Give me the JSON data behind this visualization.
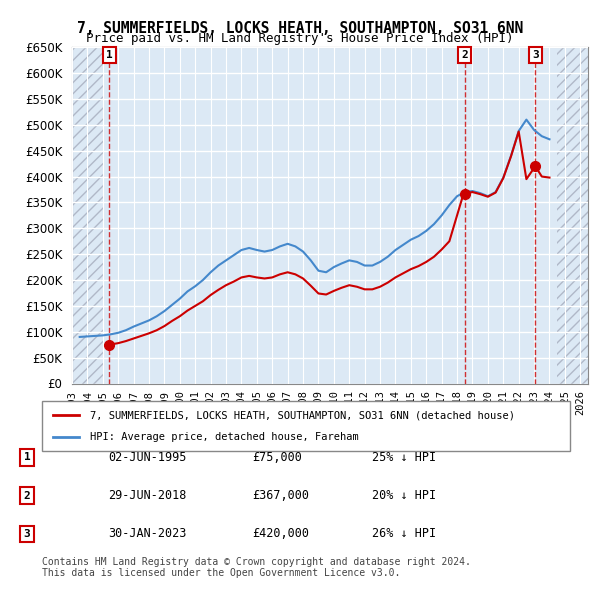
{
  "title": "7, SUMMERFIELDS, LOCKS HEATH, SOUTHAMPTON, SO31 6NN",
  "subtitle": "Price paid vs. HM Land Registry's House Price Index (HPI)",
  "legend_entry1": "7, SUMMERFIELDS, LOCKS HEATH, SOUTHAMPTON, SO31 6NN (detached house)",
  "legend_entry2": "HPI: Average price, detached house, Fareham",
  "sales": [
    {
      "num": 1,
      "date": "02-JUN-1995",
      "date_x": 1995.42,
      "price": 75000
    },
    {
      "num": 2,
      "date": "29-JUN-2018",
      "date_x": 2018.49,
      "price": 367000
    },
    {
      "num": 3,
      "date": "30-JAN-2023",
      "date_x": 2023.08,
      "price": 420000
    }
  ],
  "table_rows": [
    {
      "num": 1,
      "date": "02-JUN-1995",
      "price": "£75,000",
      "pct": "25% ↓ HPI"
    },
    {
      "num": 2,
      "date": "29-JUN-2018",
      "price": "£367,000",
      "pct": "20% ↓ HPI"
    },
    {
      "num": 3,
      "date": "30-JAN-2023",
      "price": "£420,000",
      "pct": "26% ↓ HPI"
    }
  ],
  "footer": "Contains HM Land Registry data © Crown copyright and database right 2024.\nThis data is licensed under the Open Government Licence v3.0.",
  "ylim": [
    0,
    650000
  ],
  "yticks": [
    0,
    50000,
    100000,
    150000,
    200000,
    250000,
    300000,
    350000,
    400000,
    450000,
    500000,
    550000,
    600000,
    650000
  ],
  "xlim_start": 1993,
  "xlim_end": 2026.5,
  "data_start": 1995.0,
  "data_end": 2024.5,
  "chart_bg": "#dce9f5",
  "hatch_color": "#b0b8c8",
  "grid_color": "#ffffff",
  "red_line_color": "#cc0000",
  "blue_line_color": "#4488cc",
  "sale_dot_color": "#cc0000",
  "hpi_x": [
    1993.5,
    1994.0,
    1994.5,
    1995.0,
    1995.5,
    1996.0,
    1996.5,
    1997.0,
    1997.5,
    1998.0,
    1998.5,
    1999.0,
    1999.5,
    2000.0,
    2000.5,
    2001.0,
    2001.5,
    2002.0,
    2002.5,
    2003.0,
    2003.5,
    2004.0,
    2004.5,
    2005.0,
    2005.5,
    2006.0,
    2006.5,
    2007.0,
    2007.5,
    2008.0,
    2008.5,
    2009.0,
    2009.5,
    2010.0,
    2010.5,
    2011.0,
    2011.5,
    2012.0,
    2012.5,
    2013.0,
    2013.5,
    2014.0,
    2014.5,
    2015.0,
    2015.5,
    2016.0,
    2016.5,
    2017.0,
    2017.5,
    2018.0,
    2018.5,
    2019.0,
    2019.5,
    2020.0,
    2020.5,
    2021.0,
    2021.5,
    2022.0,
    2022.5,
    2023.0,
    2023.5,
    2024.0
  ],
  "hpi_y": [
    90000,
    91000,
    92000,
    93000,
    95000,
    98000,
    103000,
    110000,
    116000,
    122000,
    130000,
    140000,
    152000,
    164000,
    178000,
    188000,
    200000,
    215000,
    228000,
    238000,
    248000,
    258000,
    262000,
    258000,
    255000,
    258000,
    265000,
    270000,
    265000,
    255000,
    238000,
    218000,
    215000,
    225000,
    232000,
    238000,
    235000,
    228000,
    228000,
    235000,
    245000,
    258000,
    268000,
    278000,
    285000,
    295000,
    308000,
    325000,
    345000,
    362000,
    370000,
    372000,
    368000,
    362000,
    370000,
    398000,
    440000,
    488000,
    510000,
    490000,
    478000,
    472000
  ],
  "paid_segments": [
    {
      "x": [
        1995.42,
        1996.0,
        1996.5,
        1997.0,
        1997.5,
        1998.0,
        1998.5,
        1999.0,
        1999.5,
        2000.0,
        2000.5,
        2001.0,
        2001.5,
        2002.0,
        2002.5,
        2003.0,
        2003.5,
        2004.0,
        2004.5,
        2005.0,
        2005.5,
        2006.0,
        2006.5,
        2007.0,
        2007.5,
        2008.0,
        2008.5,
        2009.0,
        2009.5,
        2010.0,
        2010.5,
        2011.0,
        2011.5,
        2012.0,
        2012.5,
        2013.0,
        2013.5,
        2014.0,
        2014.5,
        2015.0,
        2015.5,
        2016.0,
        2016.5,
        2017.0,
        2017.5,
        2018.42
      ],
      "y": [
        75000,
        78000,
        82000,
        87000,
        92000,
        97000,
        103000,
        111000,
        121000,
        130000,
        141000,
        150000,
        159000,
        171000,
        181000,
        190000,
        197000,
        205000,
        208000,
        205000,
        203000,
        205000,
        211000,
        215000,
        211000,
        203000,
        189000,
        174000,
        172000,
        179000,
        185000,
        190000,
        187000,
        182000,
        182000,
        187000,
        195000,
        205000,
        213000,
        221000,
        227000,
        235000,
        245000,
        259000,
        275000,
        367000
      ]
    },
    {
      "x": [
        2018.49,
        2019.0,
        2019.5,
        2020.0,
        2020.5,
        2021.0,
        2021.5,
        2022.0,
        2022.5,
        2023.08
      ],
      "y": [
        367000,
        370000,
        366000,
        361000,
        369000,
        397000,
        439000,
        487000,
        395000,
        420000
      ]
    },
    {
      "x": [
        2023.08,
        2023.5,
        2024.0
      ],
      "y": [
        420000,
        400000,
        398000
      ]
    }
  ]
}
